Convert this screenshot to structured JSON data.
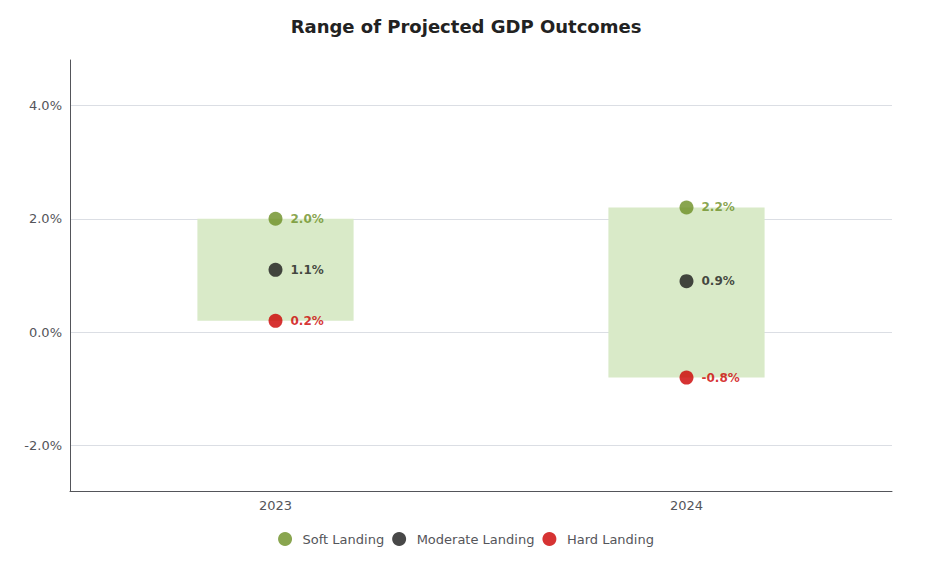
{
  "chart_data": {
    "type": "range",
    "title": "Range of Projected GDP Outcomes",
    "categories": [
      "2023",
      "2024"
    ],
    "range_bars": {
      "low": [
        0.2,
        -0.8
      ],
      "high": [
        2.0,
        2.2
      ],
      "color": "#d9eac8"
    },
    "series": [
      {
        "name": "Soft Landing",
        "color": "#6b8e23",
        "type": "scatter",
        "marker": "circle",
        "values": [
          2.0,
          2.2
        ],
        "value_labels": [
          "2.0%",
          "2.2%"
        ]
      },
      {
        "name": "Moderate Landing",
        "color": "#1a1a1a",
        "type": "scatter",
        "marker": "circle",
        "values": [
          1.1,
          0.9
        ],
        "value_labels": [
          "1.1%",
          "0.9%"
        ]
      },
      {
        "name": "Hard Landing",
        "color": "#cc0000",
        "type": "scatter",
        "marker": "circle",
        "values": [
          0.2,
          -0.8
        ],
        "value_labels": [
          "0.2%",
          "-0.8%"
        ]
      }
    ],
    "ylim": [
      -2.8,
      4.8
    ],
    "yticks": [
      {
        "value": -2.0,
        "label": "-2.0%"
      },
      {
        "value": 0.0,
        "label": "0.0%"
      },
      {
        "value": 2.0,
        "label": "2.0%"
      },
      {
        "value": 4.0,
        "label": "4.0%"
      }
    ],
    "grid": true,
    "data_labels": true,
    "legend": "bottom"
  }
}
